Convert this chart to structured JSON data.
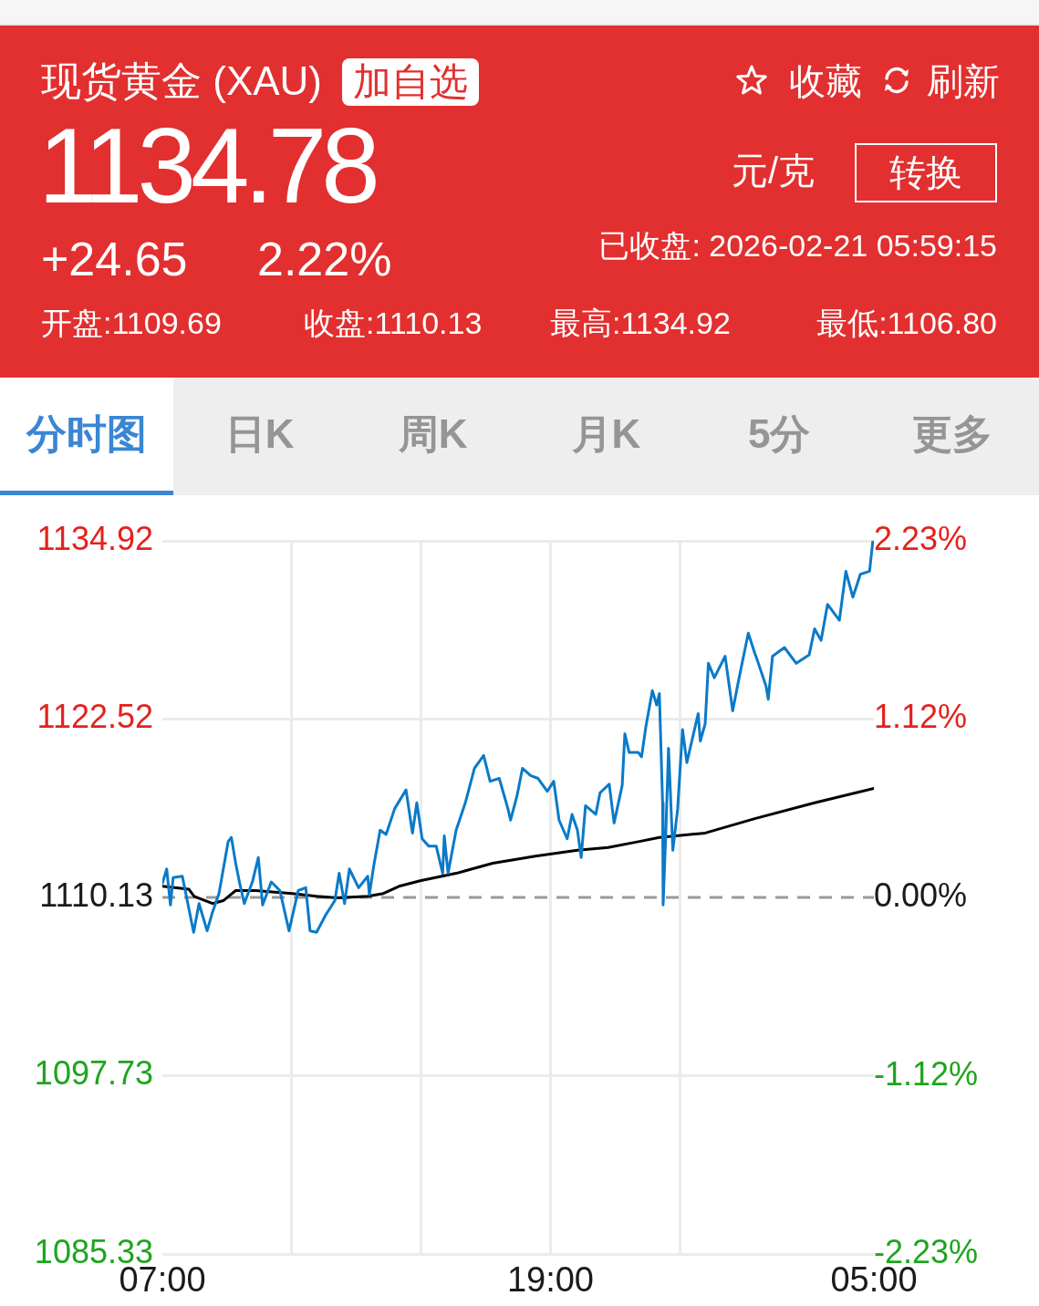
{
  "chart_data": {
    "type": "line",
    "title": "现货黄金 (XAU)",
    "subtitle": "1134.78",
    "annotations": [
      "加自选",
      "收藏",
      "刷新",
      "元/克",
      "转换",
      "+24.65",
      "2.22%",
      "已收盘: 2026-02-21 05:59:15",
      "开盘:1109.69",
      "收盘:1110.13",
      "最高:1134.92",
      "最低:1106.80",
      "分时图",
      "日K",
      "周K",
      "月K",
      "5分",
      "更多"
    ],
    "x": [
      "2026-02-20T07:00",
      "2026-02-20T07:08",
      "2026-02-20T07:15",
      "2026-02-20T07:20",
      "2026-02-20T07:37",
      "2026-02-20T07:58",
      "2026-02-20T08:08",
      "2026-02-20T08:23",
      "2026-02-20T08:33",
      "2026-02-20T08:45",
      "2026-02-20T09:02",
      "2026-02-20T09:08",
      "2026-02-20T09:16",
      "2026-02-20T09:24",
      "2026-02-20T09:32",
      "2026-02-20T09:47",
      "2026-02-20T09:58",
      "2026-02-20T10:06",
      "2026-02-20T10:22",
      "2026-02-20T10:38",
      "2026-02-20T10:55",
      "2026-02-20T11:12",
      "2026-02-20T11:26",
      "2026-02-20T11:34",
      "2026-02-20T11:46",
      "2026-02-20T12:03",
      "2026-02-20T12:20",
      "2026-02-20T12:28",
      "2026-02-20T12:38",
      "2026-02-20T12:47",
      "2026-02-20T13:04",
      "2026-02-20T13:21",
      "2026-02-20T13:24",
      "2026-02-20T13:32",
      "2026-02-20T13:44",
      "2026-02-20T13:55",
      "2026-02-20T14:11",
      "2026-02-20T14:32",
      "2026-02-20T14:44",
      "2026-02-20T14:52",
      "2026-02-20T15:02",
      "2026-02-20T15:14",
      "2026-02-20T15:28",
      "2026-02-20T15:40",
      "2026-02-20T15:43",
      "2026-02-20T15:50",
      "2026-02-20T16:05",
      "2026-02-20T16:22",
      "2026-02-20T16:39",
      "2026-02-20T16:56",
      "2026-02-20T17:08",
      "2026-02-20T17:25",
      "2026-02-20T17:41",
      "2026-02-20T17:46",
      "2026-02-20T17:58",
      "2026-02-20T18:08",
      "2026-02-20T18:23",
      "2026-02-20T18:37",
      "2026-02-20T18:54",
      "2026-02-20T19:06",
      "2026-02-20T19:16",
      "2026-02-20T19:31",
      "2026-02-20T19:40",
      "2026-02-20T19:50",
      "2026-02-20T19:57",
      "2026-02-20T20:05",
      "2026-02-20T20:24",
      "2026-02-20T20:32",
      "2026-02-20T20:49",
      "2026-02-20T20:58",
      "2026-02-20T21:13",
      "2026-02-20T21:18",
      "2026-02-20T21:26",
      "2026-02-20T21:43",
      "2026-02-20T21:49",
      "2026-02-20T21:57",
      "2026-02-20T22:09",
      "2026-02-20T22:17",
      "2026-02-20T22:22",
      "2026-02-20T22:28",
      "2026-02-20T22:29",
      "2026-02-20T22:34",
      "2026-02-20T22:39",
      "2026-02-20T22:47",
      "2026-02-20T22:56",
      "2026-02-20T23:05",
      "2026-02-20T23:13",
      "2026-02-20T23:34",
      "2026-02-20T23:38",
      "2026-02-20T23:47",
      "2026-02-20T23:53",
      "2026-02-21T00:04",
      "2026-02-21T00:24",
      "2026-02-21T00:38",
      "2026-02-21T00:50",
      "2026-02-21T01:07",
      "2026-02-21T01:19",
      "2026-02-21T01:23",
      "2026-02-21T01:40",
      "2026-02-21T01:44",
      "2026-02-21T01:52",
      "2026-02-21T02:14",
      "2026-02-21T02:36",
      "2026-02-21T03:00",
      "2026-02-21T03:10",
      "2026-02-21T03:22",
      "2026-02-21T03:34",
      "2026-02-21T03:56",
      "2026-02-21T04:08",
      "2026-02-21T04:21",
      "2026-02-21T04:35",
      "2026-02-21T04:52",
      "2026-02-21T04:58",
      "2026-02-21T05:00"
    ],
    "series": [
      {
        "color": "#0a7ac8",
        "values": [
          1111.1,
          1112.1,
          1109.6,
          1111.5,
          1111.6,
          1107.7,
          1109.7,
          1107.8,
          1109.1,
          1110.4,
          1114.0,
          1114.3,
          1112.5,
          1111.0,
          1109.7,
          1111.2,
          1112.9,
          1109.6,
          1111.2,
          1110.6,
          1107.8,
          1110.6,
          1110.8,
          1107.8,
          1107.7,
          1108.9,
          1109.9,
          1111.8,
          1109.7,
          1112.1,
          1110.8,
          1111.6,
          1110.3,
          1112.3,
          1114.8,
          1114.5,
          1116.3,
          1117.6,
          1114.6,
          1116.7,
          1114.2,
          1113.7,
          1113.7,
          1111.8,
          1114.4,
          1111.8,
          1114.8,
          1116.7,
          1119.1,
          1120.0,
          1118.2,
          1118.4,
          1116.3,
          1115.5,
          1117.2,
          1119.1,
          1118.6,
          1118.4,
          1117.5,
          1118.2,
          1115.5,
          1114.2,
          1115.9,
          1114.8,
          1112.9,
          1116.5,
          1115.9,
          1117.4,
          1118.0,
          1115.3,
          1117.9,
          1121.5,
          1120.2,
          1120.2,
          1119.9,
          1122.0,
          1124.5,
          1123.5,
          1124.3,
          1116.7,
          1109.6,
          1114.6,
          1120.5,
          1113.4,
          1116.3,
          1121.8,
          1119.5,
          1122.9,
          1121.0,
          1122.2,
          1126.4,
          1125.4,
          1126.9,
          1123.1,
          1125.4,
          1128.5,
          1127.1,
          1126.7,
          1124.8,
          1123.9,
          1126.9,
          1127.5,
          1126.4,
          1127.0,
          1128.8,
          1128.0,
          1130.5,
          1129.4,
          1132.8,
          1131.0,
          1132.6,
          1132.8,
          1134.9,
          1134.8
        ]
      },
      {
        "color": "#000000",
        "x": [
          "2026-02-20T07:00",
          "2026-02-20T07:49",
          "2026-02-20T07:59",
          "2026-02-20T08:33",
          "2026-02-20T08:53",
          "2026-02-20T09:16",
          "2026-02-20T09:53",
          "2026-02-20T11:01",
          "2026-02-20T11:46",
          "2026-02-20T12:25",
          "2026-02-20T13:21",
          "2026-02-20T13:50",
          "2026-02-20T14:19",
          "2026-02-20T15:00",
          "2026-02-20T16:05",
          "2026-02-20T17:13",
          "2026-02-20T18:32",
          "2026-02-20T19:50",
          "2026-02-20T20:47",
          "2026-02-20T21:43",
          "2026-02-20T22:22",
          "2026-02-20T23:47",
          "2026-02-21T01:19",
          "2026-02-21T03:10",
          "2026-02-21T05:00"
        ],
        "values": [
          1110.9,
          1110.7,
          1110.2,
          1109.7,
          1109.9,
          1110.6,
          1110.6,
          1110.4,
          1110.2,
          1110.1,
          1110.2,
          1110.4,
          1110.9,
          1111.3,
          1111.8,
          1112.5,
          1113.0,
          1113.4,
          1113.6,
          1114.0,
          1114.3,
          1114.6,
          1115.6,
          1116.7,
          1117.7
        ]
      }
    ],
    "xlim": [
      "2026-02-20T07:00",
      "2026-02-21T05:00"
    ],
    "xticks": [
      {
        "value": "2026-02-20T07:00",
        "label": "07:00"
      },
      {
        "value": "2026-02-20T11:00",
        "label": null
      },
      {
        "value": "2026-02-20T15:00",
        "label": null
      },
      {
        "value": "2026-02-20T19:00",
        "label": "19:00"
      },
      {
        "value": "2026-02-20T23:00",
        "label": null
      },
      {
        "value": "2026-02-21T05:00",
        "label": "05:00"
      }
    ],
    "ylim": [
      1085.33,
      1134.92
    ],
    "yticks": [
      1085.33,
      1097.73,
      1110.13,
      1122.52,
      1134.92
    ],
    "y2lim": [
      -2.23,
      2.23
    ],
    "y2ticks": [
      {
        "value": -2.23,
        "label": "-2.23%"
      },
      {
        "value": -1.12,
        "label": "-1.12%"
      },
      {
        "value": 0,
        "label": "0.00%"
      },
      {
        "value": 1.12,
        "label": "1.12%"
      },
      {
        "value": 2.23,
        "label": "2.23%"
      }
    ],
    "ref_lines": [
      {
        "axis": "y",
        "value": 1110.13,
        "color": "#999999",
        "line_style": "dashed"
      }
    ],
    "grid": true,
    "legend": false,
    "marker": "none",
    "line_style": "solid"
  }
}
